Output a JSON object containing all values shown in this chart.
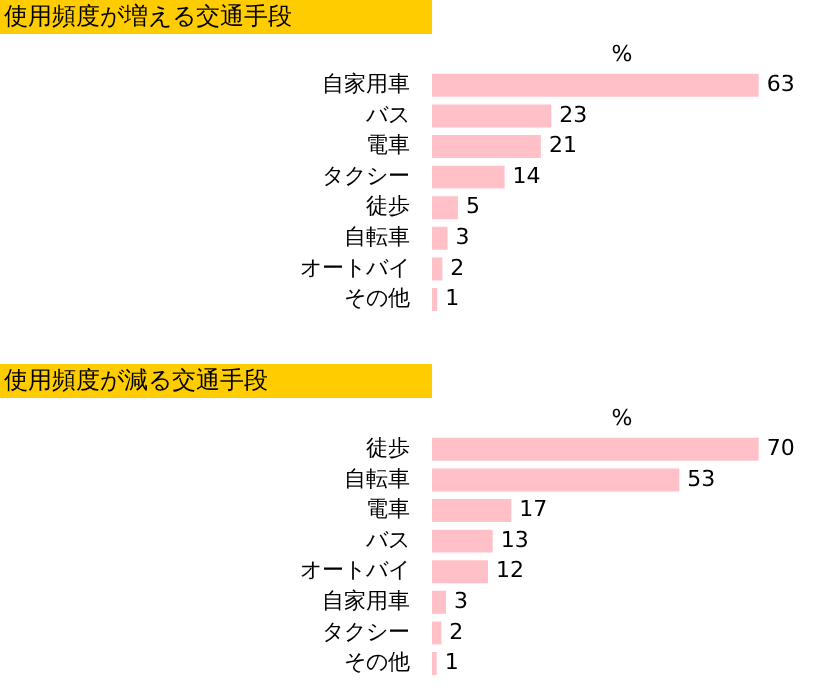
{
  "chart_data": [
    {
      "type": "bar",
      "orientation": "horizontal",
      "title": "使用頻度が増える交通手段",
      "xlabel": "%",
      "categories": [
        "自家用車",
        "バス",
        "電車",
        "タクシー",
        "徒歩",
        "自転車",
        "オートバイ",
        "その他"
      ],
      "values": [
        63,
        23,
        21,
        14,
        5,
        3,
        2,
        1
      ],
      "color": "#ffc0c8",
      "data_labels": true
    },
    {
      "type": "bar",
      "orientation": "horizontal",
      "title": "使用頻度が減る交通手段",
      "xlabel": "%",
      "categories": [
        "徒歩",
        "自転車",
        "電車",
        "バス",
        "オートバイ",
        "自家用車",
        "タクシー",
        "その他"
      ],
      "values": [
        70,
        53,
        17,
        13,
        12,
        3,
        2,
        1
      ],
      "color": "#ffc0c8",
      "data_labels": true
    }
  ]
}
